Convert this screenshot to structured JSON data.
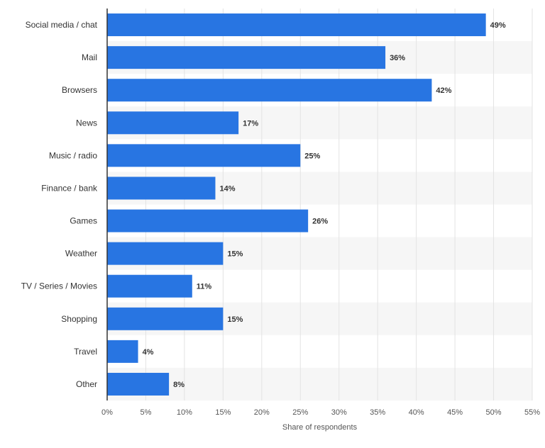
{
  "chart_data": {
    "type": "bar",
    "orientation": "horizontal",
    "categories": [
      "Social media / chat",
      "Mail",
      "Browsers",
      "News",
      "Music / radio",
      "Finance / bank",
      "Games",
      "Weather",
      "TV / Series / Movies",
      "Shopping",
      "Travel",
      "Other"
    ],
    "values": [
      49,
      36,
      42,
      17,
      25,
      14,
      26,
      15,
      11,
      15,
      4,
      8
    ],
    "value_labels": [
      "49%",
      "36%",
      "42%",
      "17%",
      "25%",
      "14%",
      "26%",
      "15%",
      "11%",
      "15%",
      "4%",
      "8%"
    ],
    "xlabel": "Share of respondents",
    "ylabel": "",
    "xlim": [
      0,
      55
    ],
    "x_ticks": [
      0,
      5,
      10,
      15,
      20,
      25,
      30,
      35,
      40,
      45,
      50,
      55
    ],
    "x_tick_labels": [
      "0%",
      "5%",
      "10%",
      "15%",
      "20%",
      "25%",
      "30%",
      "35%",
      "40%",
      "45%",
      "50%",
      "55%"
    ],
    "grid": true,
    "legend": "none",
    "colors": {
      "bar": "#2875e2",
      "row_band": "#f6f6f6",
      "gridline": "#e3e3e3",
      "axis": "#333333"
    }
  }
}
